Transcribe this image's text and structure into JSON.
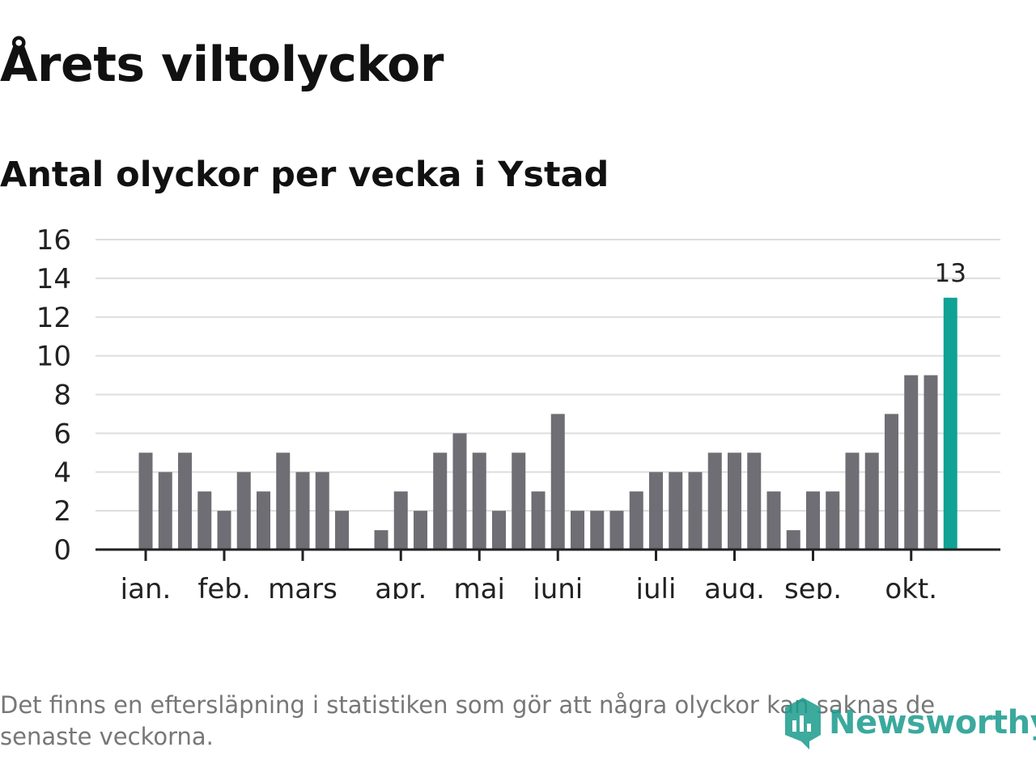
{
  "header": {
    "title": "Årets viltolyckor",
    "subtitle": "Antal olyckor per vecka i Ystad"
  },
  "footer": {
    "note": "Det finns en eftersläpning i statistiken som gör att några olyckor kan saknas de senaste veckorna.",
    "brand": "Newsworthy"
  },
  "colors": {
    "bar": "#6f6e74",
    "highlight": "#10a295",
    "grid": "#dddddd",
    "axis": "#222222",
    "brand": "#1a9b8c"
  },
  "chart_data": {
    "type": "bar",
    "title": "Årets viltolyckor",
    "subtitle": "Antal olyckor per vecka i Ystad",
    "xlabel": "",
    "ylabel": "",
    "ylim": [
      0,
      16
    ],
    "yticks": [
      0,
      2,
      4,
      6,
      8,
      10,
      12,
      14,
      16
    ],
    "grid": true,
    "values": [
      5,
      4,
      5,
      3,
      2,
      4,
      3,
      5,
      4,
      4,
      2,
      null,
      1,
      3,
      2,
      5,
      6,
      5,
      2,
      5,
      3,
      7,
      2,
      2,
      2,
      3,
      4,
      4,
      4,
      5,
      5,
      5,
      3,
      1,
      3,
      3,
      5,
      5,
      7,
      9,
      9,
      13
    ],
    "highlight_index": 41,
    "highlight_label": "13",
    "month_ticks": [
      {
        "label": "jan.",
        "week_index": 0
      },
      {
        "label": "feb.",
        "week_index": 4
      },
      {
        "label": "mars",
        "week_index": 8
      },
      {
        "label": "apr.",
        "week_index": 13
      },
      {
        "label": "maj",
        "week_index": 17
      },
      {
        "label": "juni",
        "week_index": 21
      },
      {
        "label": "juli",
        "week_index": 26
      },
      {
        "label": "aug.",
        "week_index": 30
      },
      {
        "label": "sep.",
        "week_index": 34
      },
      {
        "label": "okt.",
        "week_index": 39
      }
    ]
  }
}
